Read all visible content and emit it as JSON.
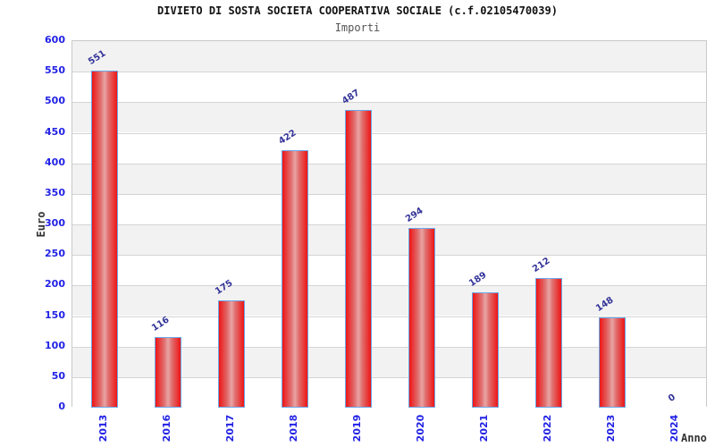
{
  "chart_data": {
    "type": "bar",
    "title": "DIVIETO DI SOSTA SOCIETA COOPERATIVA SOCIALE (c.f.02105470039)",
    "subtitle": "Importi",
    "xlabel": "Anno",
    "ylabel": "Euro",
    "categories": [
      "2013",
      "2016",
      "2017",
      "2018",
      "2019",
      "2020",
      "2021",
      "2022",
      "2023",
      "2024"
    ],
    "values": [
      551,
      116,
      175,
      422,
      487,
      294,
      189,
      212,
      148,
      0
    ],
    "ylim": [
      0,
      600
    ],
    "ytick_step": 50,
    "grid": true,
    "legend_position": "none",
    "band_colors": [
      "#f2f2f2",
      "#ffffff"
    ],
    "gridline_color": "#d4d4d4",
    "bar_edge_color": "#ee1515",
    "bar_center_color": "#e9a4a4",
    "bar_border_color": "#6aa7e8",
    "tick_color": "#2222e6",
    "value_label_color": "#333399",
    "title_color": "#111111",
    "subtitle_color": "#555555"
  }
}
